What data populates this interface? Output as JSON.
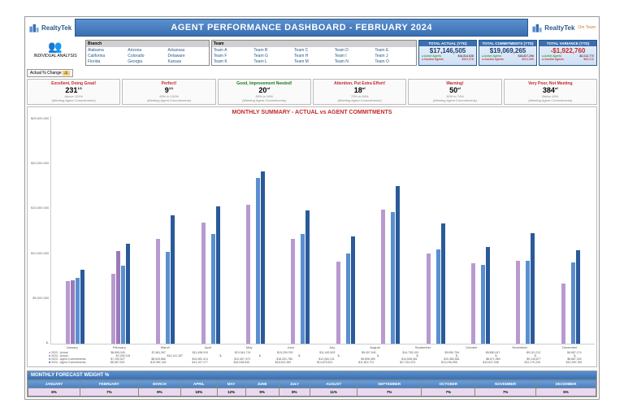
{
  "header": {
    "brand": "RealtyTek",
    "title": "AGENT PERFORMANCE DASHBOARD - FEBRUARY 2024",
    "corner": "Om Team"
  },
  "individual": {
    "label": "INDIVIDUAL ANALYSIS"
  },
  "change": {
    "label": "Actual % Change",
    "icon": "⚠"
  },
  "branch": {
    "title": "Branch",
    "items": [
      "Alabama",
      "Arizona",
      "Arkansas",
      "California",
      "Colorado",
      "Delaware",
      "Florida",
      "Georgia",
      "Kansas"
    ]
  },
  "team": {
    "title": "Team",
    "items": [
      "Team A",
      "Team B",
      "Team C",
      "Team D",
      "Team E",
      "Team F",
      "Team G",
      "Team H",
      "Team I",
      "Team J",
      "Team K",
      "Team L",
      "Team M",
      "Team N",
      "Team O"
    ]
  },
  "kpi": [
    {
      "t": "TOTAL ACTUAL (YTD)",
      "v": "$17,146,505",
      "a": "$16,814,528",
      "i": "$331,978",
      "vc": "#1a3a6a"
    },
    {
      "t": "TOTAL COMMITMENTS (YTD)",
      "v": "$19,069,265",
      "a": "$18,827,296",
      "i": "$241,969",
      "vc": "#1a3a6a"
    },
    {
      "t": "TOTAL VARIANCE (YTD)",
      "v": "-$1,922,760",
      "a": "-$2,012,770",
      "i": "$90,010",
      "vc": "#c02a2a"
    }
  ],
  "scorecards": [
    {
      "t": "Excellent, Doing Great!",
      "v": "231",
      "s": "1/1",
      "r": "Above 101%",
      "c": "#c02a2a"
    },
    {
      "t": "Perfect!",
      "v": "9",
      "s": "1/1",
      "r": "95% to 100%",
      "c": "#c02a2a"
    },
    {
      "t": "Good, Improvement Needed!",
      "v": "20",
      "s": "of",
      "r": "85% to 94%",
      "c": "#1a7a1a"
    },
    {
      "t": "Attention, Put Extra Effort!",
      "v": "18",
      "s": "of",
      "r": "75% to 84%",
      "c": "#c02a2a"
    },
    {
      "t": "Warning!",
      "v": "50",
      "s": "of",
      "r": "50% to 74%",
      "c": "#c02a2a"
    },
    {
      "t": "Very Poor, Not Meeting",
      "v": "384",
      "s": "of",
      "r": "Below 49%",
      "c": "#c02a2a"
    }
  ],
  "chart": {
    "title": "MONTHLY SUMMARY - ACTUAL vs AGENT COMMITMENTS",
    "ylabels": [
      "$25,000,000",
      "$20,000,000",
      "$15,000,000",
      "$10,000,000",
      "$5,000,000",
      "$-"
    ],
    "ymax": 25000000,
    "months": [
      "January",
      "February",
      "March",
      "April",
      "May",
      "June",
      "July",
      "August",
      "September",
      "October",
      "November",
      "December"
    ],
    "colors": {
      "s1": "#b89ad0",
      "s2": "#9a7ab8",
      "s3": "#5a8fd0",
      "s4": "#2a5a9a"
    },
    "series": [
      {
        "name": "2023 - Actual",
        "vals": [
          6895049,
          7661367,
          11496910,
          13344719,
          15299790,
          11492503,
          9007940,
          14735193,
          9950754,
          8850047,
          9110212,
          6587174
        ]
      },
      {
        "name": "2024 - Actual",
        "vals": [
          7005318,
          10141187,
          null,
          null,
          null,
          null,
          null,
          null,
          null,
          null,
          null,
          null
        ]
      },
      {
        "name": "2023 - Agent Commitments",
        "vals": [
          7190527,
          8549886,
          10081314,
          12067370,
          18251785,
          12060131,
          9896359,
          14508061,
          10380581,
          8671550,
          9145677,
          8887302
        ]
      },
      {
        "name": "2024 - Agent Commitments",
        "vals": [
          8087923,
          10981342,
          14107177,
          15048640,
          18920182,
          14675521,
          11822721,
          17311570,
          13196398,
          10647048,
          12179226,
          10290783
        ]
      }
    ]
  },
  "forecast": {
    "title": "MONTHLY FORECAST WEIGHT %",
    "months": [
      "JANUARY",
      "FEBRUARY",
      "MARCH",
      "APRIL",
      "MAY",
      "JUNE",
      "JULY",
      "AUGUST",
      "SEPTEMBER",
      "OCTOBER",
      "NOVEMBER",
      "DECEMBER"
    ],
    "vals": [
      "6%",
      "7%",
      "9%",
      "10%",
      "12%",
      "9%",
      "8%",
      "11%",
      "7%",
      "7%",
      "7%",
      "5%"
    ]
  }
}
